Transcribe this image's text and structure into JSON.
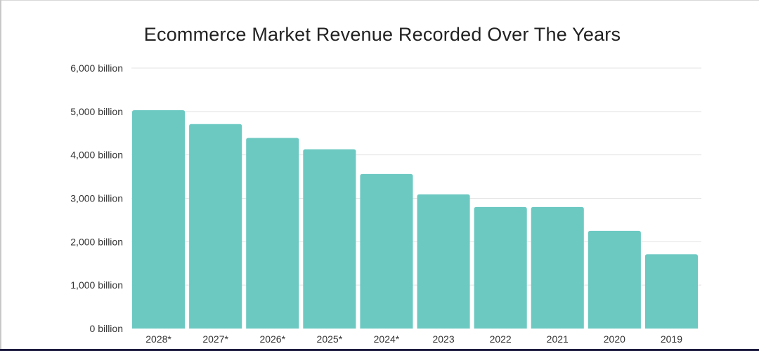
{
  "chart_data": {
    "type": "bar",
    "title": "Ecommerce Market Revenue Recorded Over The Years",
    "xlabel": "",
    "ylabel": "",
    "categories": [
      "2028*",
      "2027*",
      "2026*",
      "2025*",
      "2024*",
      "2023",
      "2022",
      "2021",
      "2020",
      "2019"
    ],
    "values": [
      5030,
      4710,
      4390,
      4130,
      3560,
      3090,
      2800,
      2800,
      2250,
      1710
    ],
    "unit": "billion",
    "ylim": [
      0,
      6000
    ],
    "yticks": [
      0,
      1000,
      2000,
      3000,
      4000,
      5000,
      6000
    ],
    "ytick_labels": [
      "0 billion",
      "1,000 billion",
      "2,000 billion",
      "3,000 billion",
      "4,000 billion",
      "5,000 billion",
      "6,000 billion"
    ],
    "grid": true,
    "legend": "none",
    "bar_color": "#6cc9c2"
  }
}
